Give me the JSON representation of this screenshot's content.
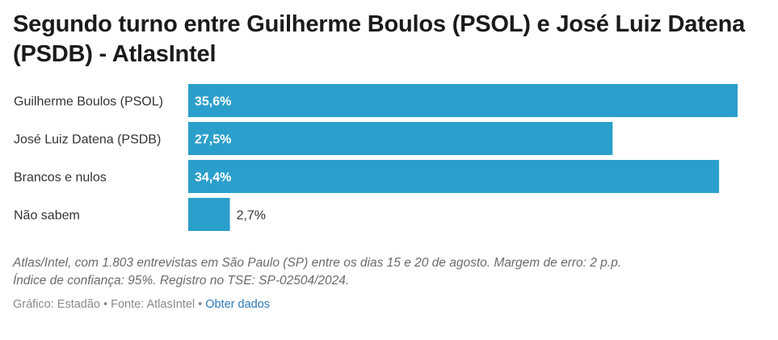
{
  "title": "Segundo turno entre Guilherme Boulos (PSOL) e José Luiz Datena (PSDB) - AtlasIntel",
  "chart_data": {
    "type": "bar",
    "orientation": "horizontal",
    "categories": [
      "Guilherme Boulos (PSOL)",
      "José Luiz Datena (PSDB)",
      "Brancos e nulos",
      "Não sabem"
    ],
    "values": [
      35.6,
      27.5,
      34.4,
      2.7
    ],
    "value_labels": [
      "35,6%",
      "27,5%",
      "34,4%",
      "2,7%"
    ],
    "title": "Segundo turno entre Guilherme Boulos (PSOL) e José Luiz Datena (PSDB) - AtlasIntel",
    "xlabel": "",
    "ylabel": "",
    "xlim": [
      0,
      35.6
    ],
    "grid": false,
    "bar_color": "#2b9fcb"
  },
  "notes": {
    "line1": "Atlas/Intel, com 1.803 entrevistas em São Paulo (SP) entre os dias 15 e 20 de agosto. Margem de erro: 2 p.p.",
    "line2": "Índice de confiança: 95%. Registro no TSE: SP-02504/2024."
  },
  "footer": {
    "text": "Gráfico: Estadão • Fonte: AtlasIntel • ",
    "link": "Obter dados"
  }
}
